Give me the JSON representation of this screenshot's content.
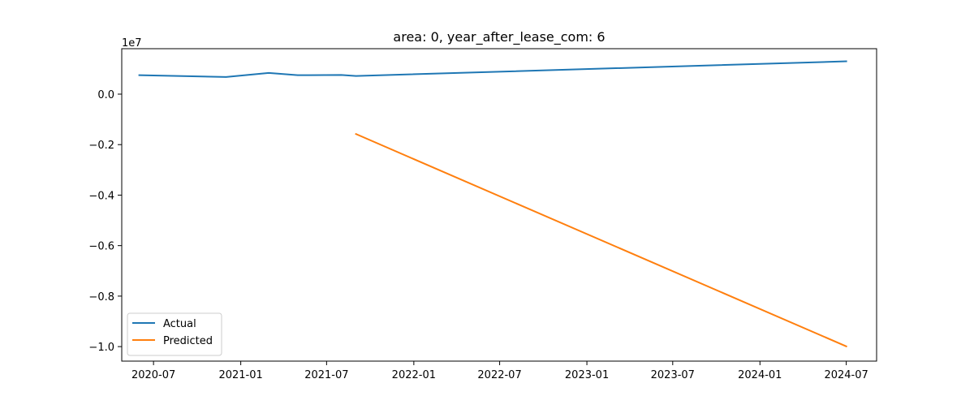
{
  "chart_data": {
    "type": "line",
    "title": "area: 0, year_after_lease_com: 6",
    "xlabel": "",
    "ylabel": "",
    "y_offset_text": "1e7",
    "xlim": [
      "2020-04-25",
      "2024-09-03"
    ],
    "ylim": [
      -1.0575,
      0.18
    ],
    "x_ticks": [
      {
        "date": "2020-07-01",
        "label": "2020-07"
      },
      {
        "date": "2021-01-01",
        "label": "2021-01"
      },
      {
        "date": "2021-07-01",
        "label": "2021-07"
      },
      {
        "date": "2022-01-01",
        "label": "2022-01"
      },
      {
        "date": "2022-07-01",
        "label": "2022-07"
      },
      {
        "date": "2023-01-01",
        "label": "2023-01"
      },
      {
        "date": "2023-07-01",
        "label": "2023-07"
      },
      {
        "date": "2024-01-01",
        "label": "2024-01"
      },
      {
        "date": "2024-07-01",
        "label": "2024-07"
      }
    ],
    "y_ticks": [
      {
        "value": 0.0,
        "label": "0.0"
      },
      {
        "value": -0.2,
        "label": "−0.2"
      },
      {
        "value": -0.4,
        "label": "−0.4"
      },
      {
        "value": -0.6,
        "label": "−0.6"
      },
      {
        "value": -0.8,
        "label": "−0.8"
      },
      {
        "value": -1.0,
        "label": "−1.0"
      }
    ],
    "series": [
      {
        "name": "Actual",
        "color": "#1f77b4",
        "points": [
          {
            "x": "2020-06-01",
            "y": 0.075
          },
          {
            "x": "2020-12-01",
            "y": 0.068
          },
          {
            "x": "2021-03-01",
            "y": 0.084
          },
          {
            "x": "2021-05-01",
            "y": 0.075
          },
          {
            "x": "2021-08-01",
            "y": 0.076
          },
          {
            "x": "2021-09-01",
            "y": 0.072
          },
          {
            "x": "2024-07-01",
            "y": 0.13
          }
        ]
      },
      {
        "name": "Predicted",
        "color": "#ff7f0e",
        "points": [
          {
            "x": "2021-09-01",
            "y": -0.158
          },
          {
            "x": "2024-07-01",
            "y": -0.999
          }
        ]
      }
    ],
    "legend_position": "lower-left",
    "grid": false
  }
}
